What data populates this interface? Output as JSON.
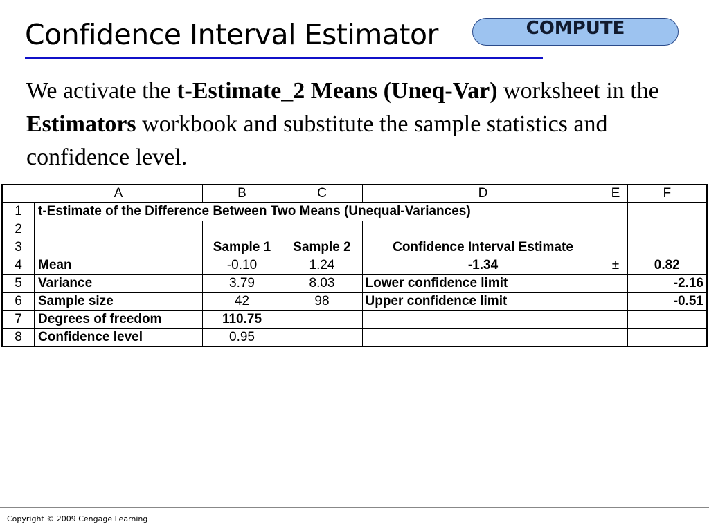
{
  "slide": {
    "title": "Confidence Interval Estimator",
    "compute_button": "COMPUTE",
    "body": [
      {
        "text": "We activate the ",
        "bold": false
      },
      {
        "text": "t-Estimate_2 Means (Uneq-Var)",
        "bold": true
      },
      {
        "text": " worksheet in the ",
        "bold": false
      },
      {
        "text": "Estimators",
        "bold": true
      },
      {
        "text": " workbook and substitute the sample statistics and confidence level.",
        "bold": false
      }
    ],
    "footer": "Copyright © 2009 Cengage Learning"
  },
  "spreadsheet": {
    "column_headers": [
      "A",
      "B",
      "C",
      "D",
      "E",
      "F"
    ],
    "rows": [
      {
        "n": "1",
        "A": "t-Estimate of the Difference Between Two Means (Unequal-Variances)",
        "B": "",
        "C": "",
        "D": "",
        "E": "",
        "F": ""
      },
      {
        "n": "2",
        "A": "",
        "B": "",
        "C": "",
        "D": "",
        "E": "",
        "F": ""
      },
      {
        "n": "3",
        "A": "",
        "B": "Sample 1",
        "C": "Sample 2",
        "D": "Confidence Interval Estimate",
        "E": "",
        "F": ""
      },
      {
        "n": "4",
        "A": "Mean",
        "B": "-0.10",
        "C": "1.24",
        "D": "-1.34",
        "E": "±",
        "F": "0.82"
      },
      {
        "n": "5",
        "A": "Variance",
        "B": "3.79",
        "C": "8.03",
        "D": "Lower confidence limit",
        "E": "",
        "F": "-2.16"
      },
      {
        "n": "6",
        "A": "Sample size",
        "B": "42",
        "C": "98",
        "D": "Upper confidence limit",
        "E": "",
        "F": "-0.51"
      },
      {
        "n": "7",
        "A": "Degrees of freedom",
        "B": "110.75",
        "C": "",
        "D": "",
        "E": "",
        "F": ""
      },
      {
        "n": "8",
        "A": "Confidence level",
        "B": "0.95",
        "C": "",
        "D": "",
        "E": "",
        "F": ""
      }
    ]
  }
}
